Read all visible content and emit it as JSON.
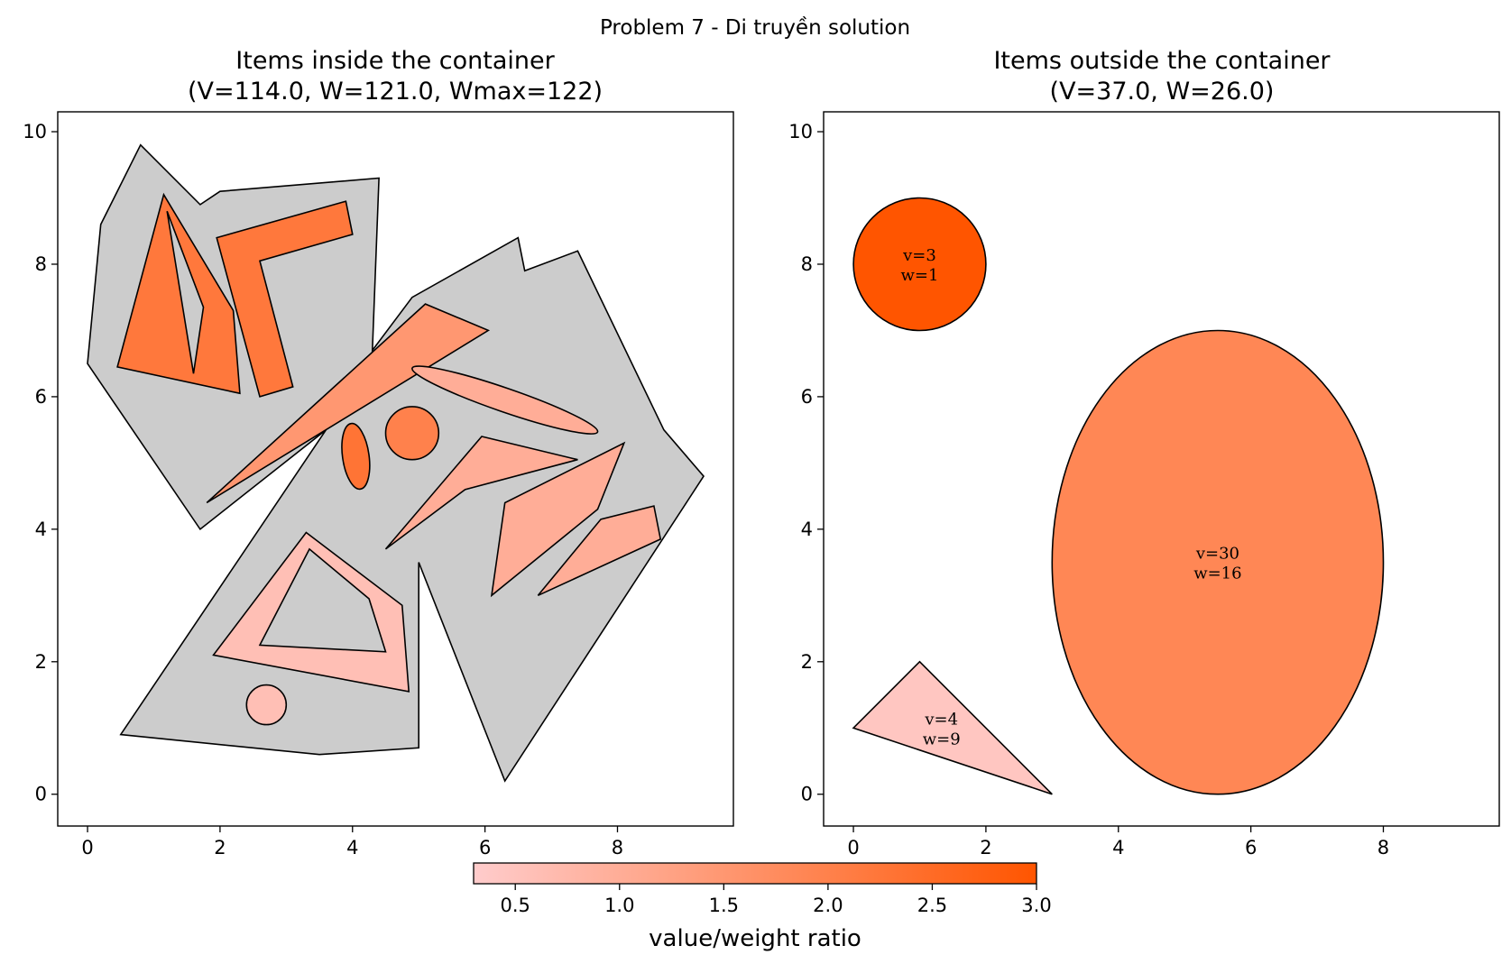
{
  "figure": {
    "suptitle": "Problem 7 - Di truyền solution",
    "colorbar": {
      "label": "value/weight ratio",
      "min": 0.3,
      "max": 3.0,
      "ticks": [
        0.5,
        1.0,
        1.5,
        2.0,
        2.5,
        3.0
      ],
      "tick_labels": [
        "0.5",
        "1.0",
        "1.5",
        "2.0",
        "2.5",
        "3.0"
      ],
      "colors": {
        "low": "#ffcccc",
        "high": "#ff5500"
      }
    },
    "colors": {
      "container": "#cccccc",
      "edge": "#000000"
    }
  },
  "chart_data": [
    {
      "type": "scatter",
      "title": "Items inside the container",
      "subtitle": "(V=114.0, W=121.0, Wmax=122)",
      "xlim": [
        -0.45,
        9.75
      ],
      "ylim": [
        -0.48,
        10.3
      ],
      "xticks": [
        0,
        2,
        4,
        6,
        8
      ],
      "yticks": [
        0,
        2,
        4,
        6,
        8,
        10
      ],
      "xtick_labels": [
        "0",
        "2",
        "4",
        "6",
        "8"
      ],
      "ytick_labels": [
        "0",
        "2",
        "4",
        "6",
        "8",
        "10"
      ],
      "container": [
        [
          0.5,
          0.9
        ],
        [
          3.6,
          5.5
        ],
        [
          1.7,
          4.0
        ],
        [
          0,
          6.5
        ],
        [
          0.2,
          8.6
        ],
        [
          0.8,
          9.8
        ],
        [
          1.7,
          8.9
        ],
        [
          2,
          9.1
        ],
        [
          4.4,
          9.3
        ],
        [
          4.3,
          6.7
        ],
        [
          4.9,
          7.5
        ],
        [
          6.5,
          8.4
        ],
        [
          6.6,
          7.9
        ],
        [
          7.4,
          8.2
        ],
        [
          8.7,
          5.5
        ],
        [
          9.3,
          4.8
        ],
        [
          6.3,
          0.2
        ],
        [
          5,
          3.5
        ],
        [
          5,
          0.7
        ],
        [
          3.5,
          0.6
        ]
      ],
      "items": [
        {
          "shape": "polygon",
          "ratio": 2.2,
          "points": [
            [
              0.45,
              6.45
            ],
            [
              1.15,
              9.05
            ],
            [
              2.2,
              7.3
            ],
            [
              2.3,
              6.05
            ]
          ],
          "hole": [
            [
              1.2,
              8.8
            ],
            [
              1.75,
              7.35
            ],
            [
              1.6,
              6.35
            ]
          ]
        },
        {
          "shape": "polygon",
          "ratio": 2.2,
          "points": [
            [
              1.95,
              8.4
            ],
            [
              3.9,
              8.95
            ],
            [
              4.0,
              8.45
            ],
            [
              2.6,
              8.05
            ],
            [
              3.1,
              6.15
            ],
            [
              2.6,
              6.0
            ]
          ]
        },
        {
          "shape": "polygon",
          "ratio": 1.5,
          "points": [
            [
              1.8,
              4.4
            ],
            [
              5.1,
              7.4
            ],
            [
              6.05,
              7.0
            ]
          ]
        },
        {
          "shape": "ellipse",
          "ratio": 1.0,
          "center": [
            6.3,
            5.95
          ],
          "rx": 1.48,
          "ry": 0.18,
          "angle": -19
        },
        {
          "shape": "ellipse",
          "ratio": 2.3,
          "center": [
            4.05,
            5.1
          ],
          "rx": 0.2,
          "ry": 0.5,
          "angle": 8
        },
        {
          "shape": "ellipse",
          "ratio": 2.0,
          "center": [
            4.9,
            5.45
          ],
          "rx": 0.4,
          "ry": 0.4,
          "angle": 0
        },
        {
          "shape": "polygon",
          "ratio": 1.0,
          "points": [
            [
              4.5,
              3.7
            ],
            [
              5.95,
              5.4
            ],
            [
              7.4,
              5.05
            ],
            [
              5.7,
              4.6
            ]
          ]
        },
        {
          "shape": "polygon",
          "ratio": 1.0,
          "points": [
            [
              6.1,
              3.0
            ],
            [
              6.3,
              4.4
            ],
            [
              8.1,
              5.3
            ],
            [
              7.7,
              4.3
            ]
          ]
        },
        {
          "shape": "polygon",
          "ratio": 1.0,
          "points": [
            [
              6.8,
              3.0
            ],
            [
              7.75,
              4.15
            ],
            [
              8.55,
              4.35
            ],
            [
              8.65,
              3.85
            ]
          ]
        },
        {
          "shape": "polygon",
          "ratio": 0.6,
          "points": [
            [
              1.9,
              2.1
            ],
            [
              3.3,
              3.95
            ],
            [
              4.75,
              2.85
            ],
            [
              4.85,
              1.55
            ]
          ],
          "hole": [
            [
              2.6,
              2.25
            ],
            [
              3.35,
              3.7
            ],
            [
              4.25,
              2.95
            ],
            [
              4.5,
              2.15
            ]
          ]
        },
        {
          "shape": "ellipse",
          "ratio": 0.6,
          "center": [
            2.7,
            1.35
          ],
          "rx": 0.3,
          "ry": 0.3,
          "angle": 0
        }
      ]
    },
    {
      "type": "scatter",
      "title": "Items outside the container",
      "subtitle": "(V=37.0, W=26.0)",
      "xlim": [
        -0.45,
        9.75
      ],
      "ylim": [
        -0.48,
        10.3
      ],
      "xticks": [
        0,
        2,
        4,
        6,
        8
      ],
      "yticks": [
        0,
        2,
        4,
        6,
        8,
        10
      ],
      "xtick_labels": [
        "0",
        "2",
        "4",
        "6",
        "8"
      ],
      "ytick_labels": [
        "0",
        "2",
        "4",
        "6",
        "8",
        "10"
      ],
      "items": [
        {
          "shape": "ellipse",
          "ratio": 3.0,
          "center": [
            1,
            8
          ],
          "rx": 1,
          "ry": 1,
          "angle": 0,
          "label_v": "v=3",
          "label_w": "w=1",
          "label_at": [
            1,
            8
          ]
        },
        {
          "shape": "ellipse",
          "ratio": 1.875,
          "center": [
            5.5,
            3.5
          ],
          "rx": 2.5,
          "ry": 3.5,
          "angle": 0,
          "label_v": "v=30",
          "label_w": "w=16",
          "label_at": [
            5.5,
            3.5
          ]
        },
        {
          "shape": "polygon",
          "ratio": 0.44,
          "points": [
            [
              0,
              1
            ],
            [
              1,
              2
            ],
            [
              3,
              0
            ]
          ],
          "label_v": "v=4",
          "label_w": "w=9",
          "label_at": [
            1.33,
            1.0
          ]
        }
      ]
    }
  ]
}
